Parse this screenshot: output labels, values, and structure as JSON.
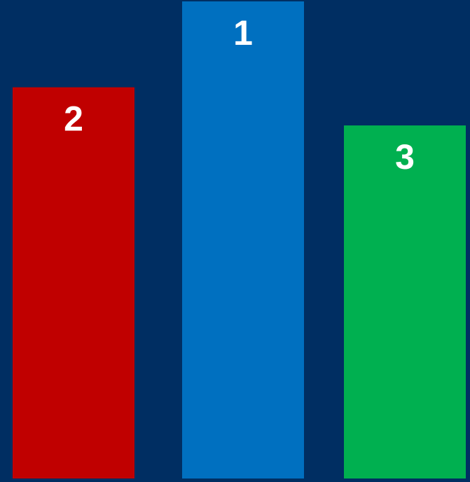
{
  "chart_data": {
    "type": "bar",
    "categories": [
      "2",
      "1",
      "3"
    ],
    "values": [
      82,
      100,
      74
    ],
    "ylim": [
      0,
      100
    ],
    "grid": false,
    "legend": "none",
    "bar_colors": [
      "#c00000",
      "#0070c0",
      "#00b050"
    ],
    "background": "#002e62",
    "label_color": "#ffffff"
  }
}
